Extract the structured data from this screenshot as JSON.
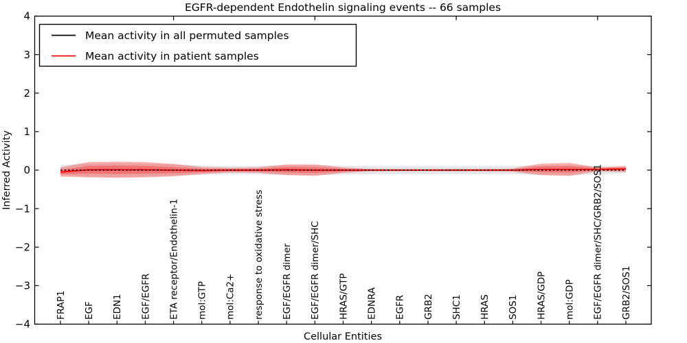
{
  "chart_data": {
    "type": "line",
    "title": "EGFR-dependent Endothelin signaling events -- 66 samples",
    "xlabel": "Cellular Entities",
    "ylabel": "Inferred Activity",
    "ylim": [
      -4,
      4
    ],
    "ytick_labels": [
      "4",
      "3",
      "2",
      "1",
      "0",
      "−1",
      "−2",
      "−3",
      "−4"
    ],
    "ytick_values": [
      4,
      3,
      2,
      1,
      0,
      -1,
      -2,
      -3,
      -4
    ],
    "grid": false,
    "legend_position": "upper-left",
    "categories": [
      "FRAP1",
      "EGF",
      "EDN1",
      "EGF/EGFR",
      "ETA receptor/Endothelin-1",
      "mol:GTP",
      "mol:Ca2+",
      "response to oxidative stress",
      "EGF/EGFR dimer",
      "EGF/EGFR dimer/SHC",
      "HRAS/GTP",
      "EDNRA",
      "EGFR",
      "GRB2",
      "SHC1",
      "HRAS",
      "SOS1",
      "HRAS/GDP",
      "mol:GDP",
      "EGF/EGFR dimer/SHC/GRB2/SOS1",
      "GRB2/SOS1"
    ],
    "series": [
      {
        "name": "Mean activity in all permuted samples",
        "color": "#000000",
        "style": "dashed",
        "values": [
          0,
          0,
          0,
          0,
          0,
          0,
          0,
          0,
          0,
          0,
          0,
          0,
          0,
          0,
          0,
          0,
          0,
          0,
          0,
          0,
          0
        ]
      },
      {
        "name": "Mean activity in patient samples",
        "color": "#ff0000",
        "style": "solid",
        "values": [
          -0.05,
          0.01,
          0.01,
          0.01,
          0.0,
          -0.01,
          0.0,
          0.0,
          0.01,
          0.0,
          0.0,
          0.0,
          0.0,
          0.0,
          0.0,
          0.0,
          0.0,
          0.02,
          0.02,
          0.02,
          0.03
        ]
      }
    ],
    "bands": [
      {
        "name": "permuted-samples-std-band",
        "center": "permuted",
        "color": "#000000",
        "opacity": 0.1,
        "half_widths": [
          0.13,
          0.17,
          0.18,
          0.17,
          0.15,
          0.12,
          0.1,
          0.11,
          0.13,
          0.13,
          0.11,
          0.1,
          0.1,
          0.1,
          0.1,
          0.1,
          0.1,
          0.13,
          0.14,
          0.1,
          0.08
        ]
      },
      {
        "name": "patient-samples-outer-band",
        "center": "patient",
        "color": "#ff0000",
        "opacity": 0.3,
        "half_widths": [
          0.12,
          0.2,
          0.21,
          0.2,
          0.16,
          0.09,
          0.06,
          0.07,
          0.14,
          0.15,
          0.07,
          0.03,
          0.025,
          0.025,
          0.03,
          0.03,
          0.04,
          0.15,
          0.17,
          0.05,
          0.08
        ]
      },
      {
        "name": "patient-samples-inner-band",
        "center": "patient",
        "color": "#ff0000",
        "opacity": 0.28,
        "half_widths": [
          0.06,
          0.1,
          0.11,
          0.1,
          0.08,
          0.045,
          0.03,
          0.035,
          0.07,
          0.075,
          0.035,
          0.015,
          0.012,
          0.012,
          0.015,
          0.015,
          0.02,
          0.075,
          0.085,
          0.025,
          0.04
        ]
      }
    ],
    "layout_hints": {
      "top_tick_indices": [
        4,
        9,
        14,
        19
      ]
    }
  }
}
